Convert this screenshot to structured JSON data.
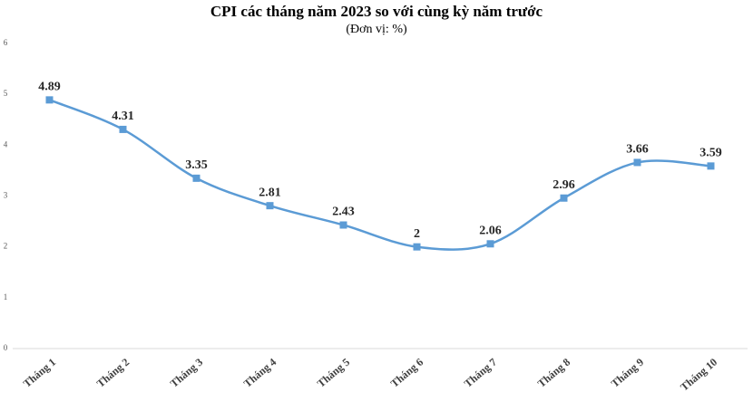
{
  "chart_data": {
    "type": "line",
    "title": "CPI các tháng năm 2023 so với cùng kỳ năm trước",
    "subtitle": "(Đơn vị: %)",
    "categories": [
      "Tháng 1",
      "Tháng 2",
      "Tháng 3",
      "Tháng 4",
      "Tháng 5",
      "Tháng 6",
      "Tháng 7",
      "Tháng 8",
      "Tháng 9",
      "Tháng 10"
    ],
    "values": [
      4.89,
      4.31,
      3.35,
      2.81,
      2.43,
      2,
      2.06,
      2.96,
      3.66,
      3.59
    ],
    "color": "#5b9bd5",
    "smooth": true,
    "ylim": [
      0,
      6
    ],
    "yticks": [
      0,
      1,
      2,
      3,
      4,
      5,
      6
    ]
  }
}
